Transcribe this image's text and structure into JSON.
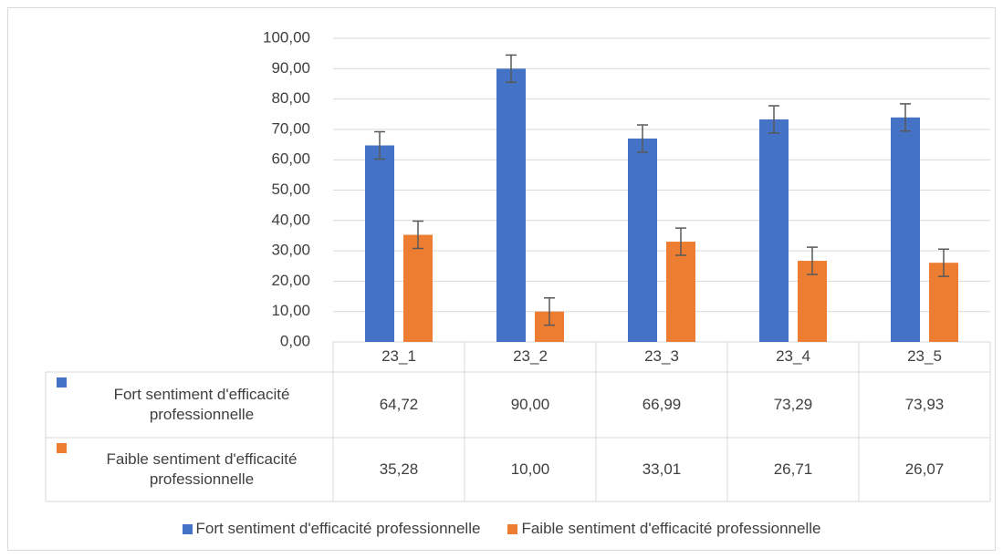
{
  "chart_data": {
    "type": "bar",
    "categories": [
      "23_1",
      "23_2",
      "23_3",
      "23_4",
      "23_5"
    ],
    "series": [
      {
        "name": "Fort sentiment d'efficacité professionnelle",
        "color": "#4472c4",
        "values": [
          64.72,
          90.0,
          66.99,
          73.29,
          73.93
        ],
        "value_labels": [
          "64,72",
          "90,00",
          "66,99",
          "73,29",
          "73,93"
        ],
        "errors": [
          4.5,
          4.5,
          4.5,
          4.5,
          4.5
        ]
      },
      {
        "name": "Faible sentiment d'efficacité professionnelle",
        "color": "#ed7d31",
        "values": [
          35.28,
          10.0,
          33.01,
          26.71,
          26.07
        ],
        "value_labels": [
          "35,28",
          "10,00",
          "33,01",
          "26,71",
          "26,07"
        ],
        "errors": [
          4.5,
          4.5,
          4.5,
          4.5,
          4.5
        ]
      }
    ],
    "ylim": [
      0,
      100
    ],
    "yticks": [
      {
        "value": 0,
        "label": "0,00"
      },
      {
        "value": 10,
        "label": "10,00"
      },
      {
        "value": 20,
        "label": "20,00"
      },
      {
        "value": 30,
        "label": "30,00"
      },
      {
        "value": 40,
        "label": "40,00"
      },
      {
        "value": 50,
        "label": "50,00"
      },
      {
        "value": 60,
        "label": "60,00"
      },
      {
        "value": 70,
        "label": "70,00"
      },
      {
        "value": 80,
        "label": "80,00"
      },
      {
        "value": 90,
        "label": "90,00"
      },
      {
        "value": 100,
        "label": "100,00"
      }
    ],
    "grid": true,
    "legend": "bottom",
    "data_table": true
  }
}
